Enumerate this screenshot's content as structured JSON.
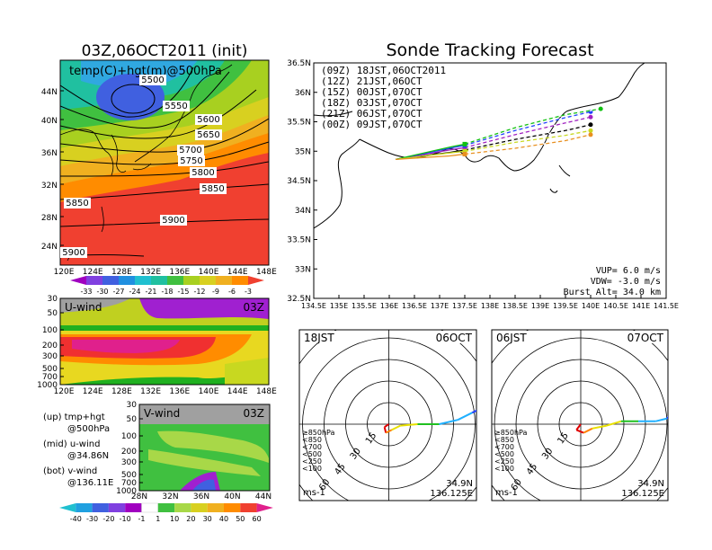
{
  "left_title": "03Z,06OCT2011 (init)",
  "right_title": "Sonde Tracking Forecast",
  "map500": {
    "label": "temp(C)+hgt(m)@500hPa",
    "lat_ticks": [
      "44N",
      "40N",
      "36N",
      "32N",
      "28N",
      "24N"
    ],
    "lon_ticks": [
      "120E",
      "124E",
      "128E",
      "132E",
      "136E",
      "140E",
      "144E",
      "148E"
    ],
    "contours": [
      "5500",
      "5550",
      "5600",
      "5650",
      "5700",
      "5750",
      "5800",
      "5850",
      "5850",
      "5900",
      "5900"
    ],
    "colorbar": [
      "-33",
      "-30",
      "-27",
      "-24",
      "-21",
      "-18",
      "-15",
      "-12",
      "-9",
      "-6",
      "-3"
    ]
  },
  "uwind": {
    "label": "U-wind",
    "time": "03Z",
    "p_ticks": [
      "30",
      "50",
      "100",
      "200",
      "300",
      "500",
      "700",
      "1000"
    ],
    "lon_ticks": [
      "120E",
      "124E",
      "128E",
      "132E",
      "136E",
      "140E",
      "144E",
      "148E"
    ]
  },
  "vwind": {
    "label": "V-wind",
    "time": "03Z",
    "p_ticks": [
      "30",
      "50",
      "100",
      "200",
      "300",
      "500",
      "700",
      "1000"
    ],
    "lat_ticks": [
      "28N",
      "32N",
      "36N",
      "40N",
      "44N"
    ],
    "colorbar": [
      "-40",
      "-30",
      "-20",
      "-10",
      "-1",
      "1",
      "10",
      "20",
      "30",
      "40",
      "50",
      "60"
    ]
  },
  "notes": [
    {
      "a": "(up)  tmp+hgt",
      "b": "@500hPa"
    },
    {
      "a": "(mid)  u-wind",
      "b": "@34.86N"
    },
    {
      "a": "(bot)  v-wind",
      "b": "@136.11E"
    }
  ],
  "track": {
    "lat_ticks": [
      "36.5N",
      "36N",
      "35.5N",
      "35N",
      "34.5N",
      "34N",
      "33.5N",
      "33N",
      "32.5N"
    ],
    "lon_ticks": [
      "134.5E",
      "135E",
      "135.5E",
      "136E",
      "136.5E",
      "137E",
      "137.5E",
      "138E",
      "138.5E",
      "139E",
      "139.5E",
      "140E",
      "140.5E",
      "141E",
      "141.5E"
    ],
    "legend": [
      {
        "label": "(09Z)  18JST,06OCT2011",
        "color": "#000000"
      },
      {
        "label": "(12Z)  21JST,06OCT",
        "color": "#a020c0"
      },
      {
        "label": "(15Z)  00JST,07OCT",
        "color": "#2040ff"
      },
      {
        "label": "(18Z)  03JST,07OCT",
        "color": "#10c010"
      },
      {
        "label": "(21Z)  06JST,07OCT",
        "color": "#c8d820"
      },
      {
        "label": "(00Z)  09JST,07OCT",
        "color": "#e89020"
      }
    ],
    "params": [
      "VUP=  6.0  m/s",
      "VDW=  -3.0  m/s",
      "Burst Alt=  34.0  km"
    ]
  },
  "hodo": [
    {
      "time": "18JST",
      "date": "06OCT",
      "unit": "ms-1",
      "lat": "34.9N",
      "lon": "136.125E",
      "rings": [
        "15",
        "30",
        "45",
        "60"
      ]
    },
    {
      "time": "06JST",
      "date": "07OCT",
      "unit": "ms-1",
      "lat": "34.9N",
      "lon": "136.125E",
      "rings": [
        "15",
        "30",
        "45",
        "60"
      ]
    }
  ],
  "hodo_legend": [
    {
      "label": "≥850hPa",
      "color": "#e00000"
    },
    {
      "label": "<850",
      "color": "#ff8000"
    },
    {
      "label": "<700",
      "color": "#e8e000"
    },
    {
      "label": "<500",
      "color": "#20c020"
    },
    {
      "label": "<250",
      "color": "#20b0ff"
    },
    {
      "label": "<100",
      "color": "#2040ff"
    }
  ],
  "chart_data": [
    {
      "type": "heatmap",
      "title": "03Z,06OCT2011 (init)",
      "variable": "temp(C)+hgt(m)@500hPa",
      "xlim": [
        120,
        149
      ],
      "ylim": [
        22,
        48
      ],
      "colorbar_levels": [
        -33,
        -30,
        -27,
        -24,
        -21,
        -18,
        -15,
        -12,
        -9,
        -6,
        -3
      ],
      "height_contours_m": [
        5500,
        5550,
        5600,
        5650,
        5700,
        5750,
        5800,
        5850,
        5900
      ]
    },
    {
      "type": "heatmap",
      "variable": "U-wind",
      "time": "03Z",
      "xlim": [
        120,
        149
      ],
      "pressure_levels_hPa": [
        30,
        50,
        100,
        200,
        300,
        500,
        700,
        1000
      ]
    },
    {
      "type": "heatmap",
      "variable": "V-wind",
      "time": "03Z",
      "xlim": [
        28,
        44
      ],
      "pressure_levels_hPa": [
        30,
        50,
        100,
        200,
        300,
        500,
        700,
        1000
      ],
      "colorbar_levels": [
        -40,
        -30,
        -20,
        -10,
        -1,
        1,
        10,
        20,
        30,
        40,
        50,
        60
      ]
    },
    {
      "type": "line",
      "title": "Sonde Tracking Forecast",
      "xlim": [
        134.5,
        141.5
      ],
      "ylim": [
        32.5,
        36.5
      ],
      "series": [
        {
          "name": "(09Z)  18JST,06OCT2011",
          "x": [
            136.125,
            137.2,
            137.5,
            138.5,
            139.5,
            140.0
          ],
          "y": [
            34.86,
            34.98,
            35.02,
            35.2,
            35.35,
            35.45
          ]
        },
        {
          "name": "(12Z)  21JST,06OCT",
          "x": [
            136.125,
            137.2,
            137.5,
            138.5,
            139.5,
            140.0
          ],
          "y": [
            34.86,
            35.02,
            35.06,
            35.28,
            35.48,
            35.58
          ]
        },
        {
          "name": "(15Z)  00JST,07OCT",
          "x": [
            136.125,
            137.2,
            137.5,
            138.5,
            139.5,
            140.0
          ],
          "y": [
            34.86,
            35.05,
            35.1,
            35.35,
            35.57,
            35.67
          ]
        },
        {
          "name": "(18Z)  03JST,07OCT",
          "x": [
            136.125,
            137.2,
            137.5,
            138.5,
            139.5,
            140.2
          ],
          "y": [
            34.86,
            35.07,
            35.12,
            35.4,
            35.62,
            35.72
          ]
        },
        {
          "name": "(21Z)  06JST,07OCT",
          "x": [
            136.125,
            137.2,
            137.5,
            138.5,
            139.5,
            140.0
          ],
          "y": [
            34.86,
            34.97,
            35.0,
            35.15,
            35.27,
            35.35
          ]
        },
        {
          "name": "(00Z)  09JST,07OCT",
          "x": [
            136.125,
            137.2,
            137.5,
            138.5,
            139.5,
            140.0
          ],
          "y": [
            34.86,
            34.92,
            34.95,
            35.05,
            35.18,
            35.28
          ]
        }
      ],
      "ascent_m_s": 6.0,
      "descent_m_s": -3.0,
      "burst_alt_km": 34.0
    },
    {
      "type": "line",
      "title": "hodograph 18JST 06OCT",
      "ring_speeds_ms": [
        15,
        30,
        45,
        60
      ],
      "site": {
        "lat": 34.9,
        "lon": 136.125
      },
      "u": [
        0,
        -3,
        -2,
        2,
        8,
        20,
        35,
        48,
        58,
        62
      ],
      "v": [
        0,
        -2,
        -6,
        -4,
        -1,
        0,
        0,
        3,
        8,
        10
      ]
    },
    {
      "type": "line",
      "title": "hodograph 06JST 07OCT",
      "ring_speeds_ms": [
        15,
        30,
        45,
        60
      ],
      "site": {
        "lat": 34.9,
        "lon": 136.125
      },
      "u": [
        0,
        -3,
        2,
        8,
        18,
        28,
        40,
        52,
        60,
        65
      ],
      "v": [
        0,
        -4,
        -6,
        -3,
        -1,
        2,
        2,
        2,
        4,
        10
      ]
    }
  ]
}
